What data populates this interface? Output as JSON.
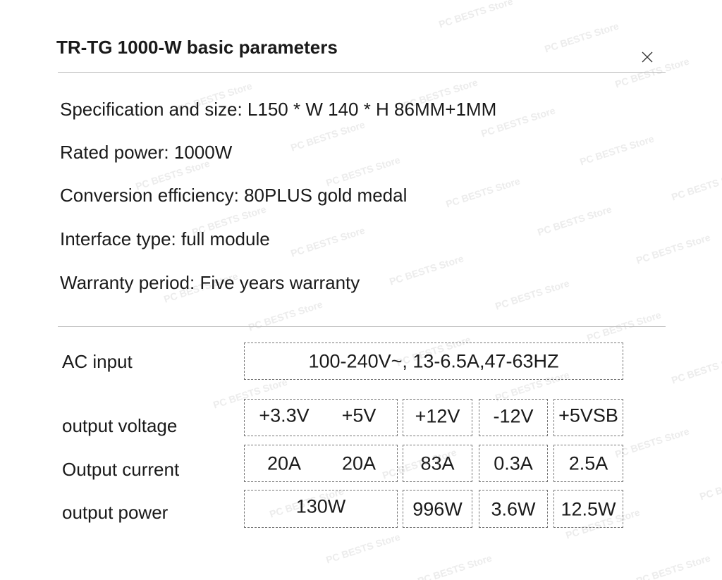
{
  "title": "TR-TG 1000-W basic parameters",
  "specs": [
    "Specification and size: L150 * W 140 * H 86MM+1MM",
    "Rated power: 1000W",
    "Conversion efficiency: 80PLUS gold medal",
    "Interface type: full module",
    "Warranty period: Five years warranty"
  ],
  "table": {
    "ac_input": {
      "label": "AC input",
      "value": "100-240V~,  13-6.5A,47-63HZ"
    },
    "rows": [
      {
        "label": "output voltage",
        "cells": [
          "+3.3V",
          "+5V",
          "+12V",
          "-12V",
          "+5VSB"
        ]
      },
      {
        "label": "Output current",
        "cells": [
          "20A",
          "20A",
          "83A",
          "0.3A",
          "2.5A"
        ]
      },
      {
        "label": "output power",
        "cells": [
          "130W",
          "996W",
          "3.6W",
          "12.5W"
        ]
      }
    ]
  },
  "watermark": "PC BESTS Store"
}
